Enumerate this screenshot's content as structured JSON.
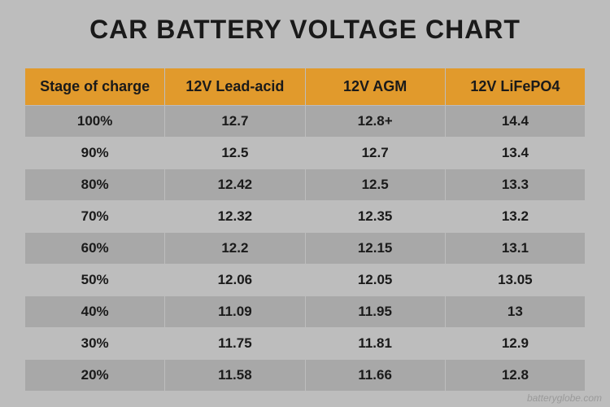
{
  "title": "CAR BATTERY VOLTAGE CHART",
  "title_fontsize": 32,
  "title_color": "#1a1a1a",
  "background_color": "#bdbdbd",
  "header_bg": "#e19a2c",
  "header_text_color": "#1a1a1a",
  "header_fontsize": 18,
  "row_even_bg": "#a8a8a8",
  "row_odd_bg": "#bdbdbd",
  "cell_text_color": "#1a1a1a",
  "cell_fontsize": 17,
  "border_color": "#bdbdbd",
  "columns": [
    "Stage of charge",
    "12V Lead-acid",
    "12V AGM",
    "12V LiFePO4"
  ],
  "rows": [
    [
      "100%",
      "12.7",
      "12.8+",
      "14.4"
    ],
    [
      "90%",
      "12.5",
      "12.7",
      "13.4"
    ],
    [
      "80%",
      "12.42",
      "12.5",
      "13.3"
    ],
    [
      "70%",
      "12.32",
      "12.35",
      "13.2"
    ],
    [
      "60%",
      "12.2",
      "12.15",
      "13.1"
    ],
    [
      "50%",
      "12.06",
      "12.05",
      "13.05"
    ],
    [
      "40%",
      "11.09",
      "11.95",
      "13"
    ],
    [
      "30%",
      "11.75",
      "11.81",
      "12.9"
    ],
    [
      "20%",
      "11.58",
      "11.66",
      "12.8"
    ]
  ],
  "watermark": "batteryglobe.com",
  "watermark_fontsize": 12,
  "watermark_color": "#5a5a5a"
}
